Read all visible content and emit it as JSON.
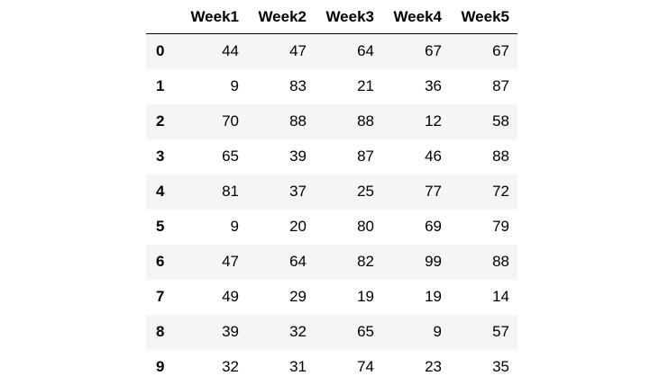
{
  "table": {
    "columns": [
      "Week1",
      "Week2",
      "Week3",
      "Week4",
      "Week5"
    ],
    "rows": [
      {
        "index": "0",
        "values": [
          "44",
          "47",
          "64",
          "67",
          "67"
        ]
      },
      {
        "index": "1",
        "values": [
          "9",
          "83",
          "21",
          "36",
          "87"
        ]
      },
      {
        "index": "2",
        "values": [
          "70",
          "88",
          "88",
          "12",
          "58"
        ]
      },
      {
        "index": "3",
        "values": [
          "65",
          "39",
          "87",
          "46",
          "88"
        ]
      },
      {
        "index": "4",
        "values": [
          "81",
          "37",
          "25",
          "77",
          "72"
        ]
      },
      {
        "index": "5",
        "values": [
          "9",
          "20",
          "80",
          "69",
          "79"
        ]
      },
      {
        "index": "6",
        "values": [
          "47",
          "64",
          "82",
          "99",
          "88"
        ]
      },
      {
        "index": "7",
        "values": [
          "49",
          "29",
          "19",
          "19",
          "14"
        ]
      },
      {
        "index": "8",
        "values": [
          "39",
          "32",
          "65",
          "9",
          "57"
        ]
      },
      {
        "index": "9",
        "values": [
          "32",
          "31",
          "74",
          "23",
          "35"
        ]
      }
    ]
  }
}
